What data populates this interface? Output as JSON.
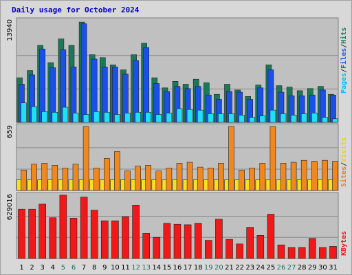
{
  "chart_data": {
    "type": "bar",
    "title": "Daily usage for October 2024",
    "categories": [
      "1",
      "2",
      "3",
      "4",
      "5",
      "6",
      "7",
      "8",
      "9",
      "10",
      "11",
      "12",
      "13",
      "14",
      "15",
      "16",
      "17",
      "18",
      "19",
      "20",
      "21",
      "22",
      "23",
      "24",
      "25",
      "26",
      "27",
      "28",
      "29",
      "30",
      "31"
    ],
    "weekend_days": [
      "5",
      "6",
      "12",
      "13",
      "19",
      "20",
      "26",
      "27"
    ],
    "panels": [
      {
        "id": "usage",
        "max_label": "13940",
        "ymax": 13940,
        "legend": [
          {
            "label": "Pages",
            "color": "#00c0e8"
          },
          {
            "label": "/",
            "color": "#333333"
          },
          {
            "label": "Files",
            "color": "#2060e0"
          },
          {
            "label": "/",
            "color": "#333333"
          },
          {
            "label": "Hits",
            "color": "#208060"
          }
        ],
        "series": [
          {
            "name": "Hits",
            "color": "#1a7a58",
            "values": [
              6200,
              7200,
              10700,
              8300,
              11600,
              10700,
              13940,
              9400,
              9000,
              8000,
              7300,
              9400,
              11000,
              6200,
              4800,
              5700,
              5300,
              6000,
              5500,
              3900,
              5300,
              4500,
              3600,
              5200,
              8000,
              5100,
              4900,
              4400,
              4700,
              5000,
              3900
            ]
          },
          {
            "name": "Files",
            "color": "#1a50e8",
            "values": [
              5300,
              6600,
              10200,
              7600,
              10100,
              7700,
              13700,
              8800,
              7700,
              7700,
              6700,
              8600,
              10400,
              5400,
              4300,
              5000,
              4700,
              5000,
              3800,
              3200,
              4300,
              4200,
              3200,
              4800,
              7300,
              4200,
              3700,
              3700,
              3800,
              4500,
              3800
            ]
          },
          {
            "name": "Pages",
            "color": "#20e0f8",
            "values": [
              2700,
              2200,
              1500,
              1400,
              2100,
              1300,
              1100,
              1500,
              1400,
              1100,
              1300,
              1400,
              1400,
              1100,
              1300,
              1900,
              1800,
              1700,
              1200,
              1200,
              1200,
              1000,
              700,
              900,
              1700,
              1200,
              1000,
              1200,
              1300,
              700,
              500
            ]
          }
        ]
      },
      {
        "id": "visits",
        "max_label": "659",
        "ymax": 659,
        "legend": [
          {
            "label": "Sites",
            "color": "#e88020"
          },
          {
            "label": "/",
            "color": "#333333"
          },
          {
            "label": "Visits",
            "color": "#e8d020"
          }
        ],
        "series": [
          {
            "name": "Visits",
            "color": "#f8e020",
            "values": [
              110,
              110,
              110,
              110,
              110,
              110,
              110,
              110,
              110,
              110,
              110,
              110,
              110,
              110,
              110,
              110,
              110,
              110,
              110,
              110,
              110,
              110,
              110,
              110,
              110,
              110,
              110,
              110,
              110,
              110,
              110
            ]
          },
          {
            "name": "Sites",
            "color": "#f08820",
            "values": [
              210,
              270,
              280,
              260,
              230,
              270,
              659,
              230,
              330,
              400,
              200,
              250,
              260,
              200,
              230,
              280,
              290,
              240,
              230,
              280,
              659,
              210,
              230,
              280,
              659,
              280,
              290,
              310,
              300,
              310,
              300
            ]
          }
        ]
      },
      {
        "id": "kbytes",
        "max_label": "629016",
        "ymax": 629016,
        "legend": [
          {
            "label": "KBytes",
            "color": "#e02020"
          }
        ],
        "series": [
          {
            "name": "KBytes",
            "color": "#f01818",
            "values": [
              490000,
              490000,
              540000,
              405000,
              629016,
              400000,
              610000,
              480000,
              375000,
              375000,
              415000,
              530000,
              250000,
              210000,
              350000,
              340000,
              335000,
              350000,
              180000,
              390000,
              190000,
              145000,
              310000,
              230000,
              440000,
              135000,
              110000,
              110000,
              200000,
              110000,
              120000
            ]
          }
        ]
      }
    ]
  }
}
